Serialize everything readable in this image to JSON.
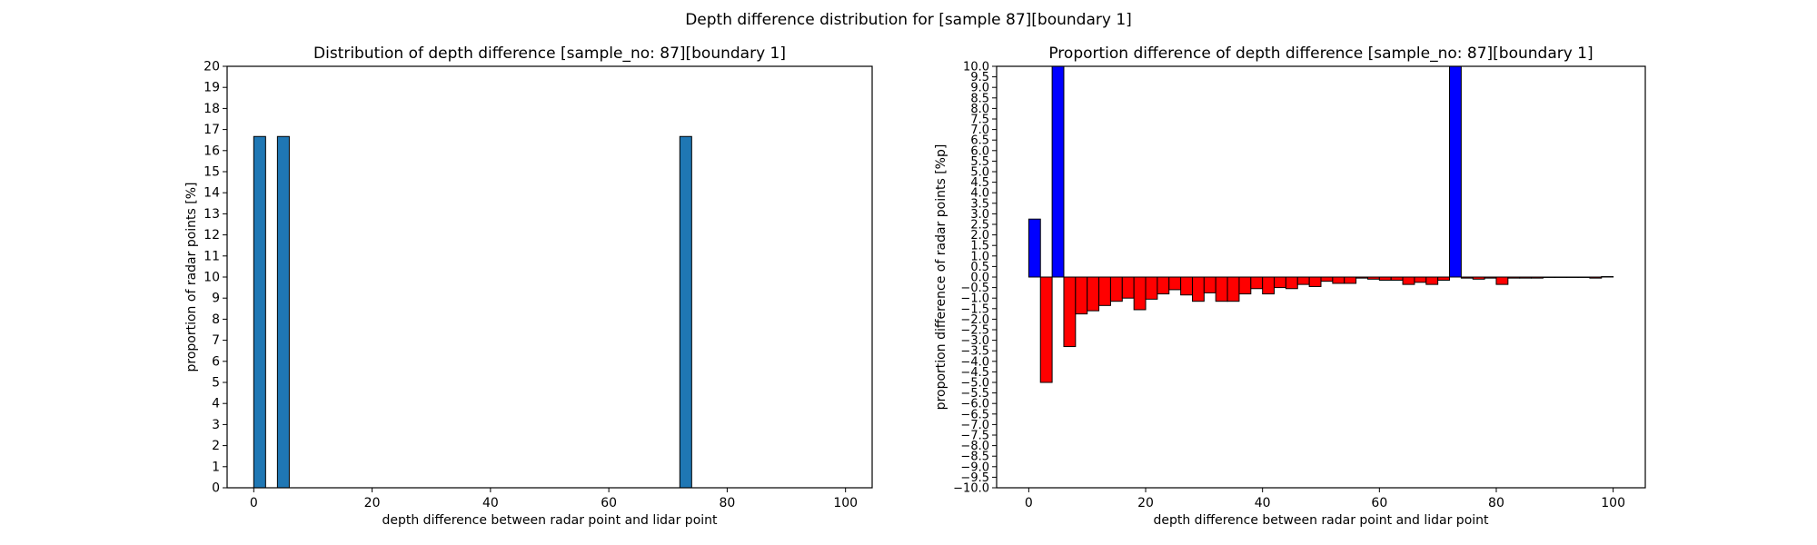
{
  "figure": {
    "suptitle": "Depth difference distribution for [sample 87][boundary 1]"
  },
  "chart_data": [
    {
      "type": "bar",
      "title": "Distribution of depth difference [sample_no: 87][boundary 1]",
      "xlabel": "depth difference between radar point and lidar point",
      "ylabel": "proportion of radar points [%]",
      "xlim": [
        -4.5,
        104.5
      ],
      "ylim": [
        0,
        20
      ],
      "xticks": [
        0,
        20,
        40,
        60,
        80,
        100
      ],
      "yticks": [
        0,
        1,
        2,
        3,
        4,
        5,
        6,
        7,
        8,
        9,
        10,
        11,
        12,
        13,
        14,
        15,
        16,
        17,
        18,
        19,
        20
      ],
      "bar_width": 2,
      "bar_color": "#1f77b4",
      "x": [
        1,
        5,
        73
      ],
      "values": [
        16.67,
        16.67,
        16.67
      ],
      "grid": false
    },
    {
      "type": "bar",
      "title": "Proportion difference of depth difference [sample_no: 87][boundary 1]",
      "xlabel": "depth difference between radar point and lidar point",
      "ylabel": "proportion difference of radar points [%p]",
      "xlim": [
        -5.5,
        105.5
      ],
      "ylim": [
        -10,
        10
      ],
      "xticks": [
        0,
        20,
        40,
        60,
        80,
        100
      ],
      "ytick_step": 0.5,
      "bar_width": 2,
      "positive_color": "#0000ff",
      "negative_color": "#ff0000",
      "x": [
        1,
        3,
        5,
        7,
        9,
        11,
        13,
        15,
        17,
        19,
        21,
        23,
        25,
        27,
        29,
        31,
        33,
        35,
        37,
        39,
        41,
        43,
        45,
        47,
        49,
        51,
        53,
        55,
        57,
        59,
        61,
        63,
        65,
        67,
        69,
        71,
        73,
        75,
        77,
        79,
        81,
        83,
        85,
        87,
        89,
        91,
        93,
        95,
        97,
        99
      ],
      "values": [
        2.75,
        -5.0,
        10.0,
        -3.3,
        -1.75,
        -1.6,
        -1.35,
        -1.15,
        -1.0,
        -1.55,
        -1.05,
        -0.8,
        -0.6,
        -0.85,
        -1.15,
        -0.75,
        -1.15,
        -1.15,
        -0.8,
        -0.55,
        -0.8,
        -0.5,
        -0.55,
        -0.35,
        -0.45,
        -0.2,
        -0.3,
        -0.3,
        -0.05,
        -0.1,
        -0.15,
        -0.15,
        -0.35,
        -0.25,
        -0.35,
        -0.15,
        10.0,
        -0.05,
        -0.1,
        -0.05,
        -0.35,
        -0.05,
        -0.05,
        -0.05,
        -0.02,
        -0.02,
        -0.02,
        -0.02,
        -0.05,
        0.02
      ],
      "grid": false
    }
  ]
}
